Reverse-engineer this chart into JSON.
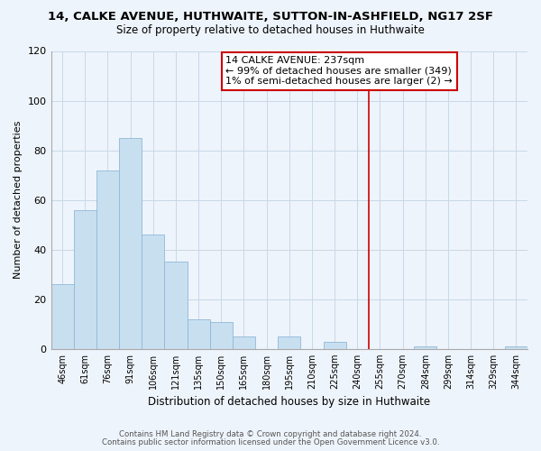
{
  "title": "14, CALKE AVENUE, HUTHWAITE, SUTTON-IN-ASHFIELD, NG17 2SF",
  "subtitle": "Size of property relative to detached houses in Huthwaite",
  "xlabel": "Distribution of detached houses by size in Huthwaite",
  "ylabel": "Number of detached properties",
  "bar_labels": [
    "46sqm",
    "61sqm",
    "76sqm",
    "91sqm",
    "106sqm",
    "121sqm",
    "135sqm",
    "150sqm",
    "165sqm",
    "180sqm",
    "195sqm",
    "210sqm",
    "225sqm",
    "240sqm",
    "255sqm",
    "270sqm",
    "284sqm",
    "299sqm",
    "314sqm",
    "329sqm",
    "344sqm"
  ],
  "bar_values": [
    26,
    56,
    72,
    85,
    46,
    35,
    12,
    11,
    5,
    0,
    5,
    0,
    3,
    0,
    0,
    0,
    1,
    0,
    0,
    0,
    1
  ],
  "bar_color": "#c8dff0",
  "bar_edge_color": "#90b8d8",
  "grid_color": "#c8d8e8",
  "background_color": "#eef4fb",
  "vline_x": 13.5,
  "vline_color": "#cc0000",
  "annotation_text": "14 CALKE AVENUE: 237sqm\n← 99% of detached houses are smaller (349)\n1% of semi-detached houses are larger (2) →",
  "annotation_box_color": "white",
  "annotation_box_edge": "#cc0000",
  "ylim": [
    0,
    120
  ],
  "yticks": [
    0,
    20,
    40,
    60,
    80,
    100,
    120
  ],
  "footer1": "Contains HM Land Registry data © Crown copyright and database right 2024.",
  "footer2": "Contains public sector information licensed under the Open Government Licence v3.0."
}
